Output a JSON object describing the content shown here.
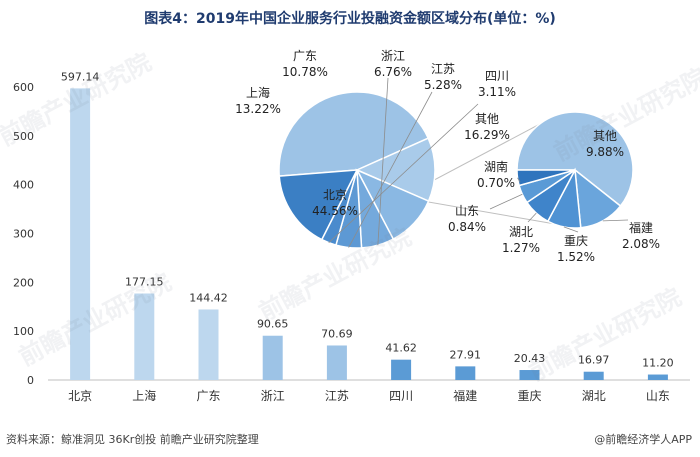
{
  "title": "图表4：2019年中国企业服务行业投融资金额区域分布(单位：%)",
  "source": "资料来源：鲸准洞见 36Kr创投 前瞻产业研究院整理",
  "brand": "@前瞻经济学人APP",
  "watermark": "前瞻产业研究院",
  "chart_data": [
    {
      "type": "bar",
      "categories": [
        "北京",
        "上海",
        "广东",
        "浙江",
        "江苏",
        "四川",
        "福建",
        "重庆",
        "湖北",
        "山东"
      ],
      "values": [
        597.14,
        177.15,
        144.42,
        90.65,
        70.69,
        41.62,
        27.91,
        20.43,
        16.97,
        11.2
      ],
      "value_labels": [
        "597.14",
        "177.15",
        "144.42",
        "90.65",
        "70.69",
        "41.62",
        "27.91",
        "20.43",
        "16.97",
        "11.20"
      ],
      "yticks": [
        0,
        100,
        200,
        300,
        400,
        500,
        600
      ],
      "ylim": [
        0,
        600
      ],
      "colors": {
        "bar_light": "#bdd7ee",
        "bar_mid": "#9dc3e6",
        "bar_dark": "#5b9bd5"
      }
    },
    {
      "type": "pie",
      "name": "main",
      "slices": [
        {
          "label": "北京",
          "pct": "44.56%",
          "value": 44.56,
          "color": "#9dc3e6"
        },
        {
          "label": "上海",
          "pct": "13.22%",
          "value": 13.22,
          "color": "#a9cbea"
        },
        {
          "label": "广东",
          "pct": "10.78%",
          "value": 10.78,
          "color": "#8ab8e3"
        },
        {
          "label": "浙江",
          "pct": "6.76%",
          "value": 6.76,
          "color": "#74a9dc"
        },
        {
          "label": "江苏",
          "pct": "5.28%",
          "value": 5.28,
          "color": "#5d99d4"
        },
        {
          "label": "四川",
          "pct": "3.11%",
          "value": 3.11,
          "color": "#4a8bcd"
        },
        {
          "label": "其他",
          "pct": "16.29%",
          "value": 16.29,
          "color": "#3b7fc4"
        }
      ]
    },
    {
      "type": "pie",
      "name": "other-breakdown",
      "slices": [
        {
          "label": "其他",
          "pct": "9.88%",
          "value": 9.88,
          "color": "#9dc3e6"
        },
        {
          "label": "福建",
          "pct": "2.08%",
          "value": 2.08,
          "color": "#6aa5dc"
        },
        {
          "label": "重庆",
          "pct": "1.52%",
          "value": 1.52,
          "color": "#4f92d3"
        },
        {
          "label": "湖北",
          "pct": "1.27%",
          "value": 1.27,
          "color": "#3f84ca"
        },
        {
          "label": "山东",
          "pct": "0.84%",
          "value": 0.84,
          "color": "#5a9ad6"
        },
        {
          "label": "湖南",
          "pct": "0.70%",
          "value": 0.7,
          "color": "#2f74bd"
        }
      ]
    }
  ]
}
